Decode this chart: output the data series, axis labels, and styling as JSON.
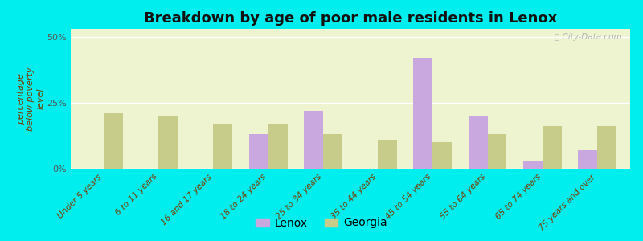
{
  "title": "Breakdown by age of poor male residents in Lenox",
  "categories": [
    "Under 5 years",
    "6 to 11 years",
    "16 and 17 years",
    "18 to 24 years",
    "25 to 34 years",
    "35 to 44 years",
    "45 to 54 years",
    "55 to 64 years",
    "65 to 74 years",
    "75 years and over"
  ],
  "lenox_values": [
    0,
    0,
    0,
    13,
    22,
    0,
    42,
    20,
    3,
    7
  ],
  "georgia_values": [
    21,
    20,
    17,
    17,
    13,
    11,
    10,
    13,
    16,
    16
  ],
  "lenox_color": "#c9a8e0",
  "georgia_color": "#c8cc8a",
  "plot_bg_color": "#eef3d0",
  "outer_background": "#00eeee",
  "ylabel": "percentage\nbelow poverty\nlevel",
  "ylim": [
    0,
    53
  ],
  "yticks": [
    0,
    25,
    50
  ],
  "ytick_labels": [
    "0%",
    "25%",
    "50%"
  ],
  "bar_width": 0.35,
  "legend_labels": [
    "Lenox",
    "Georgia"
  ],
  "title_fontsize": 13,
  "axis_label_fontsize": 8,
  "tick_fontsize": 7.5
}
